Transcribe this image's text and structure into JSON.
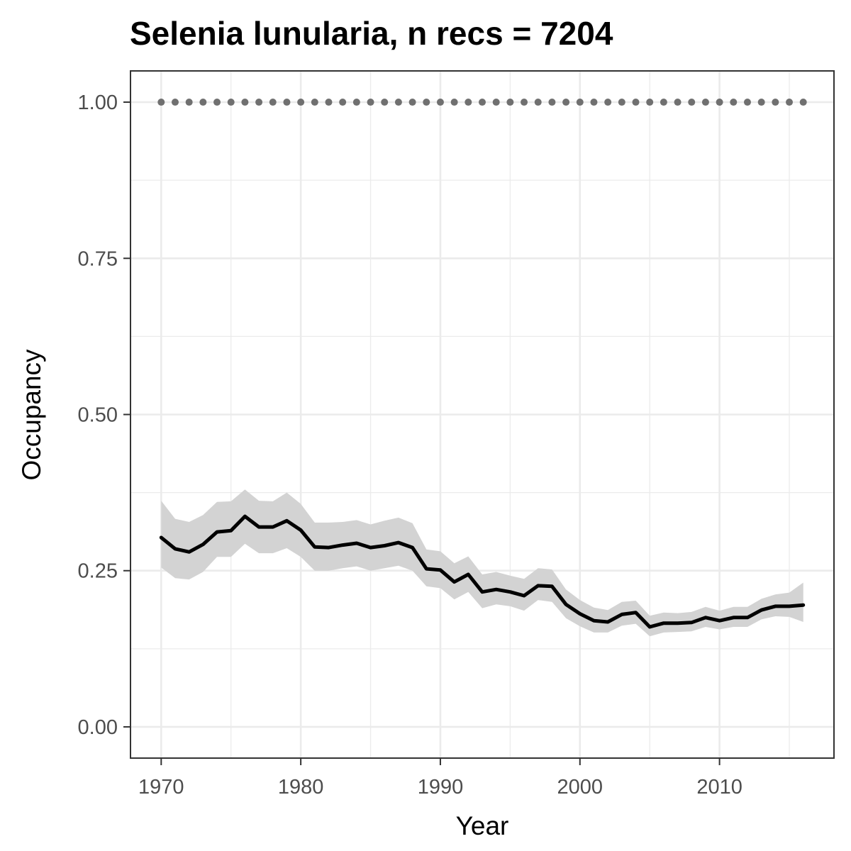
{
  "chart_data": {
    "type": "line",
    "title": "Selenia lunularia, n recs = 7204",
    "xlabel": "Year",
    "ylabel": "Occupancy",
    "xlim": [
      1967.8,
      2018.2
    ],
    "ylim": [
      -0.05,
      1.05
    ],
    "x_ticks": [
      1970,
      1980,
      1990,
      2000,
      2010
    ],
    "x_tick_labels": [
      "1970",
      "1980",
      "1990",
      "2000",
      "2010"
    ],
    "y_ticks": [
      0.0,
      0.25,
      0.5,
      0.75,
      1.0
    ],
    "y_tick_labels": [
      "0.00",
      "0.25",
      "0.50",
      "0.75",
      "1.00"
    ],
    "grid": true,
    "legend": "none",
    "colors": {
      "line": "#000000",
      "ribbon": "#d3d3d3",
      "points": "#707070",
      "grid": "#ebebeb",
      "panel_border": "#333333"
    },
    "series": [
      {
        "type": "line",
        "x": [
          1970,
          1971,
          1972,
          1973,
          1974,
          1975,
          1976,
          1977,
          1978,
          1979,
          1980,
          1981,
          1982,
          1983,
          1984,
          1985,
          1986,
          1987,
          1988,
          1989,
          1990,
          1991,
          1992,
          1993,
          1994,
          1995,
          1996,
          1997,
          1998,
          1999,
          2000,
          2001,
          2002,
          2003,
          2004,
          2005,
          2006,
          2007,
          2008,
          2009,
          2010,
          2011,
          2012,
          2013,
          2014,
          2015,
          2016
        ],
        "y": [
          0.303,
          0.285,
          0.28,
          0.292,
          0.312,
          0.314,
          0.337,
          0.32,
          0.32,
          0.33,
          0.315,
          0.288,
          0.287,
          0.291,
          0.294,
          0.287,
          0.29,
          0.295,
          0.287,
          0.253,
          0.251,
          0.232,
          0.244,
          0.216,
          0.22,
          0.216,
          0.21,
          0.226,
          0.225,
          0.196,
          0.181,
          0.17,
          0.168,
          0.18,
          0.183,
          0.16,
          0.166,
          0.166,
          0.167,
          0.175,
          0.17,
          0.175,
          0.175,
          0.187,
          0.193,
          0.193,
          0.195
        ],
        "lower": [
          0.255,
          0.238,
          0.236,
          0.248,
          0.272,
          0.272,
          0.293,
          0.278,
          0.278,
          0.286,
          0.272,
          0.25,
          0.25,
          0.254,
          0.257,
          0.25,
          0.254,
          0.258,
          0.25,
          0.225,
          0.222,
          0.204,
          0.216,
          0.19,
          0.196,
          0.193,
          0.186,
          0.203,
          0.2,
          0.174,
          0.161,
          0.151,
          0.151,
          0.162,
          0.165,
          0.145,
          0.151,
          0.152,
          0.153,
          0.16,
          0.156,
          0.16,
          0.16,
          0.172,
          0.177,
          0.176,
          0.168
        ],
        "upper": [
          0.362,
          0.333,
          0.328,
          0.339,
          0.36,
          0.361,
          0.38,
          0.362,
          0.361,
          0.375,
          0.357,
          0.327,
          0.327,
          0.328,
          0.331,
          0.324,
          0.33,
          0.335,
          0.326,
          0.284,
          0.281,
          0.262,
          0.273,
          0.244,
          0.248,
          0.242,
          0.237,
          0.254,
          0.252,
          0.22,
          0.203,
          0.191,
          0.187,
          0.2,
          0.202,
          0.178,
          0.183,
          0.182,
          0.184,
          0.192,
          0.186,
          0.192,
          0.192,
          0.205,
          0.212,
          0.215,
          0.231
        ]
      },
      {
        "type": "scatter",
        "x": [
          1970,
          1971,
          1972,
          1973,
          1974,
          1975,
          1976,
          1977,
          1978,
          1979,
          1980,
          1981,
          1982,
          1983,
          1984,
          1985,
          1986,
          1987,
          1988,
          1989,
          1990,
          1991,
          1992,
          1993,
          1994,
          1995,
          1996,
          1997,
          1998,
          1999,
          2000,
          2001,
          2002,
          2003,
          2004,
          2005,
          2006,
          2007,
          2008,
          2009,
          2010,
          2011,
          2012,
          2013,
          2014,
          2015,
          2016
        ],
        "y": [
          1,
          1,
          1,
          1,
          1,
          1,
          1,
          1,
          1,
          1,
          1,
          1,
          1,
          1,
          1,
          1,
          1,
          1,
          1,
          1,
          1,
          1,
          1,
          1,
          1,
          1,
          1,
          1,
          1,
          1,
          1,
          1,
          1,
          1,
          1,
          1,
          1,
          1,
          1,
          1,
          1,
          1,
          1,
          1,
          1,
          1,
          1
        ]
      }
    ]
  }
}
